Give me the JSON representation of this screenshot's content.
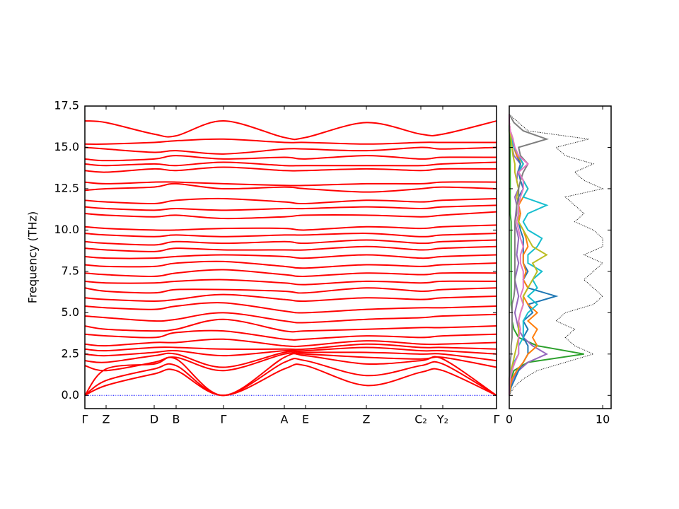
{
  "chart_data": [
    {
      "type": "line",
      "ylabel": "Frequency (THz)",
      "color": "#ff0000",
      "x": [
        0,
        30,
        98,
        129,
        196,
        282,
        312,
        398,
        475,
        506,
        582
      ],
      "xlim": [
        0,
        582
      ],
      "xticks": [
        {
          "value": 0,
          "label": "Γ"
        },
        {
          "value": 30,
          "label": "Z"
        },
        {
          "value": 98,
          "label": "D"
        },
        {
          "value": 129,
          "label": "B"
        },
        {
          "value": 196,
          "label": "Γ"
        },
        {
          "value": 282,
          "label": "A"
        },
        {
          "value": 312,
          "label": "E"
        },
        {
          "value": 398,
          "label": "Z"
        },
        {
          "value": 475,
          "label": "C₂"
        },
        {
          "value": 506,
          "label": "Y₂"
        },
        {
          "value": 582,
          "label": "Γ"
        }
      ],
      "ylim": [
        -0.8,
        17.5
      ],
      "yticks": [
        {
          "value": 0,
          "label": "0.0"
        },
        {
          "value": 2.5,
          "label": "2.5"
        },
        {
          "value": 5,
          "label": "5.0"
        },
        {
          "value": 7.5,
          "label": "7.5"
        },
        {
          "value": 10,
          "label": "10.0"
        },
        {
          "value": 12.5,
          "label": "12.5"
        },
        {
          "value": 15,
          "label": "15.0"
        },
        {
          "value": 17.5,
          "label": "17.5"
        }
      ],
      "series": [
        {
          "color": "#0000ff",
          "style": "dotted",
          "values": [
            0,
            0,
            0,
            0,
            0,
            0,
            0,
            0,
            0,
            0,
            0
          ]
        },
        {
          "values": [
            0,
            0.6,
            1.3,
            1.5,
            0,
            1.6,
            1.8,
            0.6,
            1.4,
            1.5,
            0
          ]
        },
        {
          "values": [
            0,
            0.9,
            1.6,
            1.8,
            0,
            2.0,
            2.1,
            1.2,
            1.8,
            1.9,
            0
          ]
        },
        {
          "values": [
            0,
            1.6,
            1.9,
            2.2,
            0,
            2.3,
            2.4,
            1.9,
            2.1,
            2.2,
            0
          ]
        },
        {
          "values": [
            1.8,
            1.5,
            2.0,
            2.3,
            1.5,
            2.5,
            2.5,
            2.3,
            2.2,
            2.3,
            1.7
          ]
        },
        {
          "values": [
            2.1,
            2.0,
            2.4,
            2.5,
            1.7,
            2.6,
            2.6,
            2.6,
            2.5,
            2.5,
            2.1
          ]
        },
        {
          "values": [
            2.5,
            2.4,
            2.6,
            2.7,
            2.4,
            2.7,
            2.7,
            2.9,
            2.7,
            2.7,
            2.5
          ]
        },
        {
          "values": [
            2.8,
            2.7,
            2.9,
            2.9,
            2.8,
            2.8,
            2.8,
            3.1,
            2.9,
            2.9,
            2.8
          ]
        },
        {
          "values": [
            3.1,
            3.0,
            3.2,
            3.2,
            3.4,
            3.0,
            3.0,
            3.3,
            3.1,
            3.1,
            3.2
          ]
        },
        {
          "values": [
            3.7,
            3.6,
            3.5,
            3.8,
            3.9,
            3.4,
            3.4,
            3.6,
            3.5,
            3.6,
            3.7
          ]
        },
        {
          "values": [
            4.2,
            4.0,
            3.9,
            4.0,
            4.6,
            3.9,
            3.9,
            4.0,
            4.1,
            4.1,
            4.2
          ]
        },
        {
          "values": [
            4.8,
            4.7,
            4.5,
            4.6,
            5.0,
            4.5,
            4.4,
            4.6,
            4.7,
            4.8,
            4.9
          ]
        },
        {
          "values": [
            5.4,
            5.3,
            5.2,
            5.4,
            5.6,
            5.1,
            5.0,
            5.2,
            5.3,
            5.3,
            5.4
          ]
        },
        {
          "values": [
            5.9,
            5.8,
            5.7,
            5.8,
            6.1,
            5.8,
            5.7,
            5.9,
            5.8,
            5.9,
            6.0
          ]
        },
        {
          "values": [
            6.5,
            6.3,
            6.2,
            6.4,
            6.4,
            6.3,
            6.2,
            6.5,
            6.3,
            6.4,
            6.5
          ]
        },
        {
          "values": [
            6.9,
            6.8,
            6.8,
            6.9,
            7.0,
            6.8,
            6.7,
            6.9,
            6.8,
            6.9,
            6.9
          ]
        },
        {
          "values": [
            7.4,
            7.3,
            7.2,
            7.4,
            7.6,
            7.3,
            7.2,
            7.4,
            7.3,
            7.4,
            7.4
          ]
        },
        {
          "values": [
            7.9,
            7.8,
            7.8,
            8.0,
            8.1,
            7.8,
            7.7,
            7.9,
            7.8,
            7.9,
            8.0
          ]
        },
        {
          "values": [
            8.4,
            8.3,
            8.3,
            8.4,
            8.5,
            8.4,
            8.3,
            8.5,
            8.3,
            8.4,
            8.5
          ]
        },
        {
          "values": [
            8.9,
            8.8,
            8.7,
            8.9,
            8.8,
            8.8,
            8.8,
            9.0,
            8.8,
            8.9,
            9.0
          ]
        },
        {
          "values": [
            9.3,
            9.2,
            9.1,
            9.3,
            9.2,
            9.3,
            9.2,
            9.4,
            9.2,
            9.3,
            9.4
          ]
        },
        {
          "values": [
            9.8,
            9.7,
            9.6,
            9.7,
            9.6,
            9.7,
            9.7,
            9.8,
            9.6,
            9.7,
            9.8
          ]
        },
        {
          "values": [
            10.2,
            10.1,
            10.0,
            10.0,
            10.1,
            10.1,
            10.0,
            10.2,
            10.1,
            10.2,
            10.3
          ]
        },
        {
          "values": [
            11.0,
            10.9,
            10.8,
            10.9,
            10.7,
            10.8,
            10.9,
            10.9,
            10.8,
            10.9,
            11.1
          ]
        },
        {
          "values": [
            11.4,
            11.3,
            11.2,
            11.3,
            11.2,
            11.3,
            11.3,
            11.4,
            11.3,
            11.4,
            11.5
          ]
        },
        {
          "values": [
            11.8,
            11.7,
            11.6,
            11.8,
            11.9,
            11.7,
            11.6,
            11.8,
            11.7,
            11.8,
            11.9
          ]
        },
        {
          "values": [
            12.4,
            12.5,
            12.6,
            12.8,
            12.5,
            12.6,
            12.5,
            12.3,
            12.5,
            12.6,
            12.5
          ]
        },
        {
          "values": [
            12.9,
            12.8,
            12.9,
            12.9,
            12.8,
            12.7,
            12.7,
            12.8,
            12.8,
            12.9,
            12.9
          ]
        },
        {
          "values": [
            13.6,
            13.5,
            13.7,
            13.6,
            13.8,
            13.6,
            13.6,
            13.7,
            13.6,
            13.7,
            13.7
          ]
        },
        {
          "values": [
            14.0,
            13.9,
            14.0,
            13.9,
            14.1,
            13.9,
            13.9,
            13.9,
            13.9,
            14.0,
            14.1
          ]
        },
        {
          "values": [
            14.3,
            14.2,
            14.3,
            14.5,
            14.3,
            14.4,
            14.3,
            14.5,
            14.3,
            14.4,
            14.4
          ]
        },
        {
          "values": [
            15.0,
            14.9,
            14.7,
            14.8,
            14.6,
            14.9,
            14.9,
            14.8,
            15.0,
            14.9,
            15.0
          ]
        },
        {
          "values": [
            15.2,
            15.2,
            15.3,
            15.4,
            15.5,
            15.3,
            15.3,
            15.2,
            15.3,
            15.3,
            15.3
          ]
        },
        {
          "values": [
            16.6,
            16.5,
            15.8,
            15.7,
            16.6,
            15.6,
            15.6,
            16.5,
            15.8,
            15.8,
            16.6
          ]
        }
      ]
    },
    {
      "type": "dos",
      "freq": [
        0,
        0.5,
        1,
        1.5,
        2,
        2.5,
        3,
        3.5,
        4,
        4.5,
        5,
        5.5,
        6,
        6.5,
        7,
        7.5,
        8,
        8.5,
        9,
        9.5,
        10,
        10.5,
        11,
        11.5,
        12,
        12.5,
        13,
        13.5,
        14,
        14.5,
        15,
        15.5,
        16,
        16.5,
        17
      ],
      "xlim": [
        0,
        10.9
      ],
      "xticks": [
        0,
        10
      ],
      "ylim": [
        -0.8,
        17.5
      ],
      "yticks": [
        0,
        2.5,
        5,
        7.5,
        10,
        12.5,
        15,
        17.5
      ],
      "series": [
        {
          "color": "#000000",
          "style": "dotted",
          "values": [
            0,
            0.5,
            1.5,
            3,
            6,
            9,
            7,
            6,
            7,
            5,
            6,
            9,
            10,
            9,
            8,
            9,
            10,
            8,
            10,
            10,
            9,
            7,
            8,
            7,
            6,
            10,
            8,
            7,
            9,
            6,
            5,
            8.5,
            2,
            1,
            0
          ]
        },
        {
          "color": "#2ca02c",
          "values": [
            0,
            0,
            0.2,
            0.5,
            2,
            8,
            3,
            1,
            0.5,
            0.3,
            0.3,
            0.2,
            0.2,
            0.2,
            0.2,
            0.2,
            0.2,
            0.2,
            0.2,
            0.2,
            0.2,
            0.2,
            0.1,
            0.1,
            0.1,
            0.1,
            0.1,
            0.1,
            0.1,
            0.1,
            0.1,
            0.1,
            0,
            0,
            0
          ]
        },
        {
          "color": "#9467bd",
          "values": [
            0,
            0.1,
            0.4,
            1,
            2,
            4,
            2.5,
            1.5,
            1,
            0.8,
            0.6,
            0.8,
            1,
            0.8,
            0.6,
            0.8,
            1,
            0.8,
            0.9,
            1,
            0.8,
            0.6,
            0.7,
            0.8,
            0.6,
            1,
            0.8,
            0.9,
            1.2,
            0.5,
            0.3,
            0.4,
            0.1,
            0,
            0
          ]
        },
        {
          "color": "#1f77b4",
          "values": [
            0,
            0.2,
            0.6,
            1,
            1.5,
            2,
            2,
            1.5,
            2,
            1.5,
            2.5,
            2,
            5,
            2,
            1.5,
            2,
            1.5,
            1.5,
            1.5,
            1.5,
            1.2,
            1,
            1.2,
            1,
            1,
            1.5,
            1.2,
            1,
            1.2,
            0.8,
            0.5,
            0.4,
            0.1,
            0,
            0
          ]
        },
        {
          "color": "#ff7f0e",
          "values": [
            0,
            0.1,
            0.3,
            0.8,
            1.5,
            2,
            3,
            2.5,
            3,
            2,
            3,
            2,
            1.5,
            2,
            1.5,
            1.8,
            1.5,
            1.5,
            2,
            1.8,
            1.5,
            1,
            1.2,
            1,
            1.5,
            2,
            1.5,
            1,
            1.5,
            0.8,
            0.5,
            0.4,
            0.1,
            0,
            0
          ]
        },
        {
          "color": "#17becf",
          "values": [
            0,
            0,
            0.1,
            0.3,
            0.5,
            1,
            1,
            1.5,
            1.5,
            1.5,
            2,
            3,
            2,
            3,
            2.5,
            3.5,
            2,
            2,
            3,
            3.5,
            2,
            1.5,
            2,
            4,
            1.5,
            2,
            1.5,
            1,
            1.5,
            1,
            0.5,
            0.3,
            0.1,
            0,
            0
          ]
        },
        {
          "color": "#bcbd22",
          "values": [
            0,
            0,
            0.1,
            0.2,
            0.4,
            0.6,
            0.8,
            1,
            1,
            1,
            1.2,
            1.5,
            1.5,
            2,
            2.5,
            3,
            2.5,
            4,
            2.5,
            2,
            1.5,
            1,
            1,
            1,
            0.8,
            1,
            0.8,
            0.6,
            0.6,
            0.4,
            0.3,
            0.2,
            0.1,
            0,
            0
          ]
        },
        {
          "color": "#7f7f7f",
          "values": [
            0,
            0,
            0,
            0.1,
            0.1,
            0.2,
            0.2,
            0.3,
            0.3,
            0.3,
            0.3,
            0.3,
            0.5,
            0.6,
            0.6,
            0.6,
            0.6,
            0.6,
            0.6,
            0.6,
            0.6,
            0.6,
            0.8,
            0.8,
            1,
            1,
            1.2,
            1.5,
            2,
            1.2,
            1,
            4,
            1.5,
            0.5,
            0
          ]
        },
        {
          "color": "#e377c2",
          "values": [
            0,
            0,
            0.1,
            0.3,
            0.6,
            1,
            1,
            1,
            1.2,
            1,
            1.2,
            1.5,
            1.2,
            1.5,
            1.5,
            1.5,
            1.2,
            1.2,
            1.5,
            1.2,
            1,
            0.8,
            1,
            1,
            1.2,
            1.5,
            1.5,
            1,
            2,
            1,
            0.6,
            0.4,
            0.1,
            0,
            0
          ]
        }
      ]
    }
  ]
}
